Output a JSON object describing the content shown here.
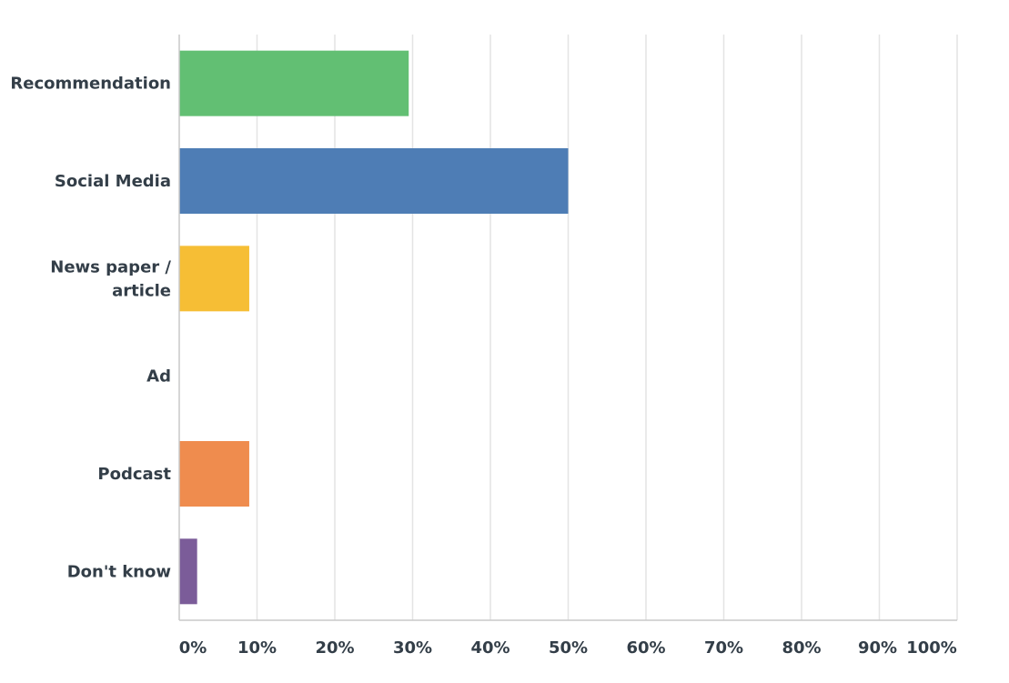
{
  "chart_data": {
    "type": "bar",
    "orientation": "horizontal",
    "categories": [
      [
        "Recommendation"
      ],
      [
        "Social Media"
      ],
      [
        "News paper /",
        "article"
      ],
      [
        "Ad"
      ],
      [
        "Podcast"
      ],
      [
        "Don't know"
      ]
    ],
    "values": [
      29.5,
      50.0,
      9.0,
      0.0,
      9.0,
      2.3
    ],
    "colors": [
      "#62bf73",
      "#4e7db5",
      "#f6be35",
      "#bd5c93",
      "#ef8c4e",
      "#7b5c99"
    ],
    "xlim": [
      0,
      100
    ],
    "x_ticks": [
      0,
      10,
      20,
      30,
      40,
      50,
      60,
      70,
      80,
      90,
      100
    ],
    "x_tick_labels": [
      "0%",
      "10%",
      "20%",
      "30%",
      "40%",
      "50%",
      "60%",
      "70%",
      "80%",
      "90%",
      "100%"
    ],
    "grid": true,
    "legend": "none"
  }
}
